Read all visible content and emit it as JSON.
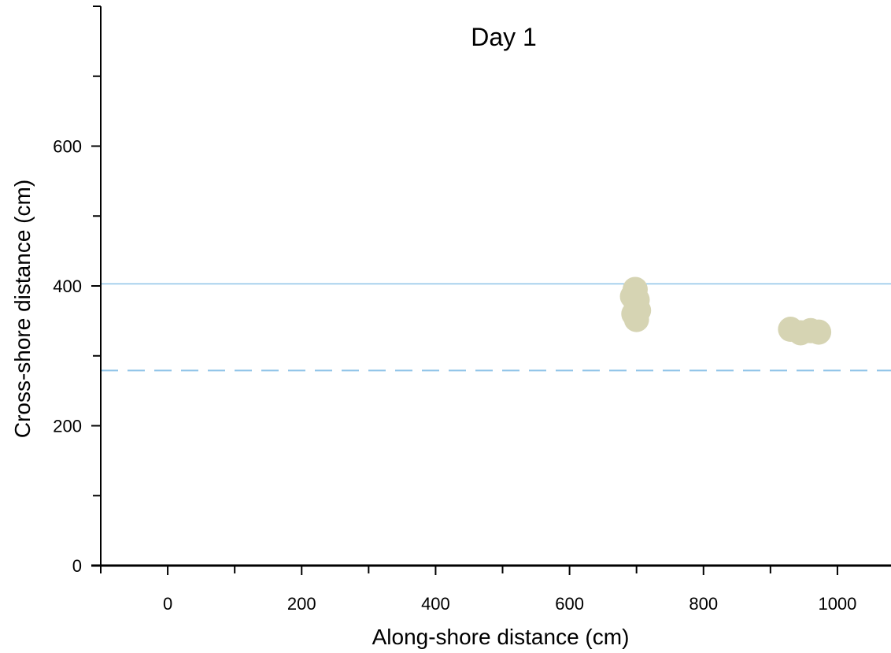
{
  "chart_data": {
    "type": "scatter",
    "title": "Day 1",
    "xlabel": "Along-shore distance (cm)",
    "ylabel": "Cross-shore distance (cm)",
    "xlim": [
      -100,
      1080
    ],
    "ylim": [
      0,
      800
    ],
    "xticks": [
      0,
      200,
      400,
      600,
      800,
      1000
    ],
    "yticks": [
      0,
      200,
      400,
      600
    ],
    "xtick_labels": [
      "0",
      "200",
      "400",
      "600",
      "800",
      "1000"
    ],
    "ytick_labels": [
      "0",
      "200",
      "400",
      "600"
    ],
    "grid": false,
    "reference_lines": [
      {
        "y": 403,
        "style": "solid",
        "color": "#8ec3e8"
      },
      {
        "y": 279,
        "style": "dashed",
        "color": "#8ec3e8"
      }
    ],
    "series": [
      {
        "color": "#d6d4b3",
        "points": [
          {
            "x": 698,
            "y": 395
          },
          {
            "x": 701,
            "y": 380
          },
          {
            "x": 703,
            "y": 365
          },
          {
            "x": 700,
            "y": 352
          },
          {
            "x": 694,
            "y": 385
          },
          {
            "x": 696,
            "y": 360
          },
          {
            "x": 930,
            "y": 338
          },
          {
            "x": 945,
            "y": 333
          },
          {
            "x": 960,
            "y": 336
          },
          {
            "x": 972,
            "y": 334
          }
        ]
      }
    ]
  }
}
